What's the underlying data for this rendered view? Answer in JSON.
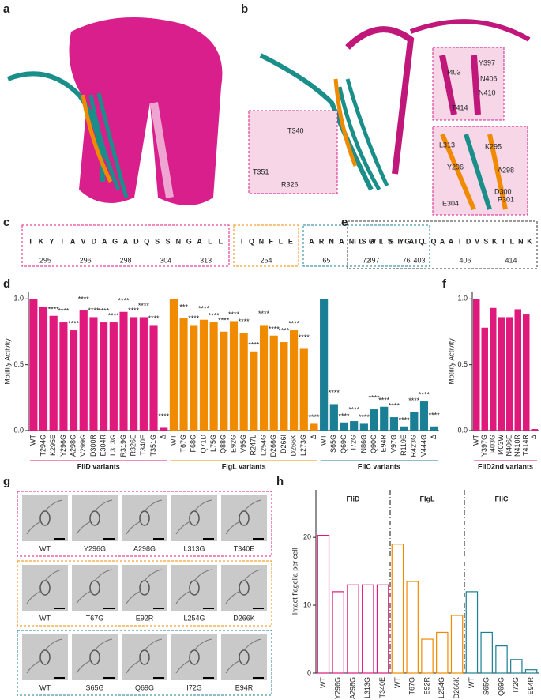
{
  "panel_labels": [
    "a",
    "b",
    "c",
    "d",
    "e",
    "f",
    "g",
    "h"
  ],
  "structure_labels": [
    "Y397",
    "I403",
    "N406",
    "N410",
    "T414",
    "T340",
    "T351",
    "R326",
    "L313",
    "K295",
    "Y296",
    "A298",
    "D300",
    "P301",
    "E304"
  ],
  "logo_c": [
    {
      "color": "#e0197d",
      "letters": [
        "T",
        "K",
        "Y",
        "T",
        "A",
        "V",
        "D",
        "A",
        "G",
        "A",
        "D",
        "Q",
        "S",
        "S",
        "N",
        "G",
        "A",
        "L",
        "L"
      ],
      "positions": [
        "295",
        "296",
        "298",
        "304",
        "313"
      ]
    },
    {
      "color": "#f08a00",
      "letters": [
        "T",
        "Q",
        "N",
        "F",
        "L",
        "E"
      ],
      "positions": [
        "254"
      ]
    },
    {
      "color": "#1a7f95",
      "letters": [
        "A",
        "R",
        "N",
        "A",
        "N",
        "D",
        "G",
        "I",
        "S",
        "Y",
        "A",
        "Q"
      ],
      "positions": [
        "65",
        "72",
        "76"
      ]
    }
  ],
  "logo_e": {
    "color": "#333333",
    "letters": [
      "T",
      "S",
      "W",
      "L",
      "S",
      "T",
      "G",
      "I",
      "L",
      "Q",
      "A",
      "A",
      "T",
      "D",
      "V",
      "S",
      "K",
      "T",
      "L",
      "N",
      "K"
    ],
    "positions": [
      "397",
      "403",
      "406",
      "414"
    ]
  },
  "micrographs": [
    {
      "color": "#e0197d",
      "labels": [
        "WT",
        "Y296G",
        "A298G",
        "L313G",
        "T340E"
      ]
    },
    {
      "color": "#f08a00",
      "labels": [
        "WT",
        "T67G",
        "E92R",
        "L254G",
        "D266K"
      ]
    },
    {
      "color": "#1a7f95",
      "labels": [
        "WT",
        "S65G",
        "Q69G",
        "I72G",
        "E94R"
      ]
    }
  ],
  "chart_data": [
    {
      "type": "bar",
      "ylabel": "Motility Activity",
      "ylim": [
        0,
        1.05
      ],
      "yticks": [
        {
          "value": 0,
          "label": "0.0"
        },
        {
          "value": 0.5,
          "label": "0.5"
        },
        {
          "value": 1,
          "label": "1.0"
        }
      ],
      "groups": [
        {
          "name": "FliD variants",
          "color": "#e0197d",
          "categories": [
            "WT",
            "T294G",
            "K295E",
            "Y296G",
            "A298G",
            "V299G",
            "D300R",
            "E304R",
            "L313G",
            "R319G",
            "R326E",
            "T340E",
            "T351G",
            "Δ"
          ],
          "values": [
            1.0,
            0.94,
            0.87,
            0.82,
            0.76,
            0.91,
            0.86,
            0.82,
            0.82,
            0.9,
            0.86,
            0.86,
            0.8,
            0.02
          ],
          "annotations": [
            null,
            null,
            "****",
            "****",
            "****",
            "****",
            "****",
            "****",
            "****",
            "****",
            "****",
            "****",
            "****",
            "****"
          ]
        },
        {
          "name": "FlgL variants",
          "color": "#f08a00",
          "categories": [
            "WT",
            "T67G",
            "F68G",
            "Q71D",
            "L75G",
            "Q88G",
            "E92G",
            "V95G",
            "R247L",
            "L254G",
            "D266G",
            "D266I",
            "D266K",
            "L273G",
            "Δ"
          ],
          "values": [
            1.0,
            0.85,
            0.8,
            0.84,
            0.82,
            0.75,
            0.83,
            0.74,
            0.6,
            0.8,
            0.72,
            0.67,
            0.76,
            0.62,
            0.05
          ],
          "annotations": [
            null,
            "***",
            "****",
            "****",
            "****",
            "****",
            "****",
            "****",
            "****",
            "****",
            "****",
            "****",
            "****",
            "****",
            "****"
          ]
        },
        {
          "name": "FliC variants",
          "color": "#1a7f95",
          "categories": [
            "WT",
            "S65G",
            "Q69G",
            "I72G",
            "N86G",
            "Q90G",
            "E94R",
            "V97G",
            "R119E",
            "R423G",
            "V444G",
            "Δ"
          ],
          "values": [
            1.0,
            0.2,
            0.06,
            0.07,
            0.05,
            0.16,
            0.18,
            0.1,
            0.03,
            0.14,
            0.22,
            0.03
          ],
          "annotations": [
            null,
            "****",
            "****",
            "****",
            "****",
            "****",
            "****",
            "****",
            "****",
            "****",
            "****",
            "****"
          ]
        }
      ]
    },
    {
      "type": "bar",
      "ylabel": "Motility Activity",
      "ylim": [
        0,
        1.05
      ],
      "yticks": [
        {
          "value": 0,
          "label": "0.0"
        },
        {
          "value": 0.5,
          "label": "0.5"
        },
        {
          "value": 1,
          "label": "1.0"
        }
      ],
      "groups": [
        {
          "name": "FliD2nd variants",
          "color": "#e0197d",
          "categories": [
            "WT",
            "Y397G",
            "I403G",
            "I403W",
            "N406E",
            "N410R",
            "T414R",
            "Δ"
          ],
          "values": [
            1.0,
            0.78,
            0.93,
            0.86,
            0.86,
            0.92,
            0.88,
            0.01
          ]
        }
      ]
    },
    {
      "type": "bar",
      "open": true,
      "ylabel": "Intact flagella per cell",
      "ylim": [
        0,
        27
      ],
      "yticks": [
        0,
        10,
        20
      ],
      "groups": [
        {
          "name": "FliD",
          "color": "#e0197d",
          "categories": [
            "WT",
            "Y296G",
            "A298G",
            "L313G",
            "T340E"
          ],
          "values": [
            20.3,
            12,
            13,
            13,
            13
          ]
        },
        {
          "name": "FlgL",
          "color": "#f08a00",
          "categories": [
            "WT",
            "T67G",
            "E92R",
            "L254G",
            "D266K"
          ],
          "values": [
            19,
            13.5,
            5,
            6,
            8.5
          ]
        },
        {
          "name": "FliC",
          "color": "#1a7f95",
          "categories": [
            "WT",
            "S65G",
            "Q69G",
            "I72G",
            "E94R"
          ],
          "values": [
            12,
            6,
            4,
            2,
            0.5
          ]
        }
      ]
    }
  ]
}
